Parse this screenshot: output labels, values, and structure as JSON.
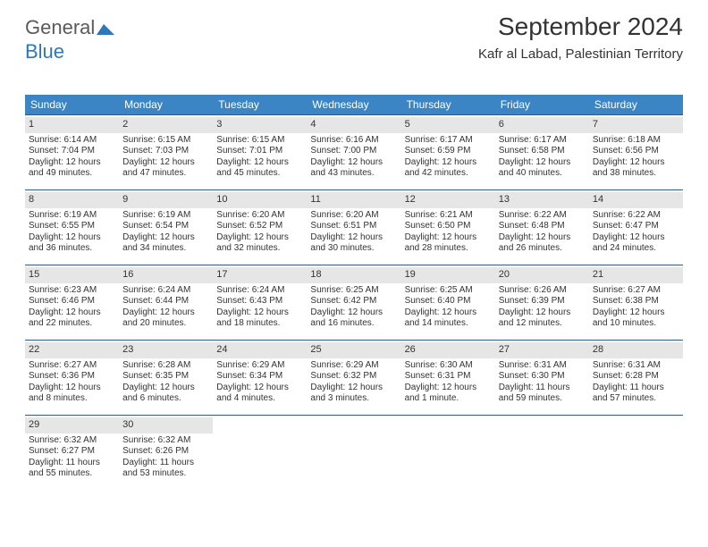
{
  "logo": {
    "text1": "General",
    "text2": "Blue"
  },
  "header": {
    "title": "September 2024",
    "subtitle": "Kafr al Labad, Palestinian Territory"
  },
  "colors": {
    "header_bg": "#3b85c5",
    "header_text": "#ffffff",
    "cell_rule": "#2f5b87",
    "daynum_bg": "#e6e6e6",
    "text": "#333333",
    "logo_gray": "#5a5a5a",
    "logo_blue": "#2f77bb"
  },
  "dayheads": [
    "Sunday",
    "Monday",
    "Tuesday",
    "Wednesday",
    "Thursday",
    "Friday",
    "Saturday"
  ],
  "days": [
    {
      "n": "1",
      "sr": "Sunrise: 6:14 AM",
      "ss": "Sunset: 7:04 PM",
      "d1": "Daylight: 12 hours",
      "d2": "and 49 minutes."
    },
    {
      "n": "2",
      "sr": "Sunrise: 6:15 AM",
      "ss": "Sunset: 7:03 PM",
      "d1": "Daylight: 12 hours",
      "d2": "and 47 minutes."
    },
    {
      "n": "3",
      "sr": "Sunrise: 6:15 AM",
      "ss": "Sunset: 7:01 PM",
      "d1": "Daylight: 12 hours",
      "d2": "and 45 minutes."
    },
    {
      "n": "4",
      "sr": "Sunrise: 6:16 AM",
      "ss": "Sunset: 7:00 PM",
      "d1": "Daylight: 12 hours",
      "d2": "and 43 minutes."
    },
    {
      "n": "5",
      "sr": "Sunrise: 6:17 AM",
      "ss": "Sunset: 6:59 PM",
      "d1": "Daylight: 12 hours",
      "d2": "and 42 minutes."
    },
    {
      "n": "6",
      "sr": "Sunrise: 6:17 AM",
      "ss": "Sunset: 6:58 PM",
      "d1": "Daylight: 12 hours",
      "d2": "and 40 minutes."
    },
    {
      "n": "7",
      "sr": "Sunrise: 6:18 AM",
      "ss": "Sunset: 6:56 PM",
      "d1": "Daylight: 12 hours",
      "d2": "and 38 minutes."
    },
    {
      "n": "8",
      "sr": "Sunrise: 6:19 AM",
      "ss": "Sunset: 6:55 PM",
      "d1": "Daylight: 12 hours",
      "d2": "and 36 minutes."
    },
    {
      "n": "9",
      "sr": "Sunrise: 6:19 AM",
      "ss": "Sunset: 6:54 PM",
      "d1": "Daylight: 12 hours",
      "d2": "and 34 minutes."
    },
    {
      "n": "10",
      "sr": "Sunrise: 6:20 AM",
      "ss": "Sunset: 6:52 PM",
      "d1": "Daylight: 12 hours",
      "d2": "and 32 minutes."
    },
    {
      "n": "11",
      "sr": "Sunrise: 6:20 AM",
      "ss": "Sunset: 6:51 PM",
      "d1": "Daylight: 12 hours",
      "d2": "and 30 minutes."
    },
    {
      "n": "12",
      "sr": "Sunrise: 6:21 AM",
      "ss": "Sunset: 6:50 PM",
      "d1": "Daylight: 12 hours",
      "d2": "and 28 minutes."
    },
    {
      "n": "13",
      "sr": "Sunrise: 6:22 AM",
      "ss": "Sunset: 6:48 PM",
      "d1": "Daylight: 12 hours",
      "d2": "and 26 minutes."
    },
    {
      "n": "14",
      "sr": "Sunrise: 6:22 AM",
      "ss": "Sunset: 6:47 PM",
      "d1": "Daylight: 12 hours",
      "d2": "and 24 minutes."
    },
    {
      "n": "15",
      "sr": "Sunrise: 6:23 AM",
      "ss": "Sunset: 6:46 PM",
      "d1": "Daylight: 12 hours",
      "d2": "and 22 minutes."
    },
    {
      "n": "16",
      "sr": "Sunrise: 6:24 AM",
      "ss": "Sunset: 6:44 PM",
      "d1": "Daylight: 12 hours",
      "d2": "and 20 minutes."
    },
    {
      "n": "17",
      "sr": "Sunrise: 6:24 AM",
      "ss": "Sunset: 6:43 PM",
      "d1": "Daylight: 12 hours",
      "d2": "and 18 minutes."
    },
    {
      "n": "18",
      "sr": "Sunrise: 6:25 AM",
      "ss": "Sunset: 6:42 PM",
      "d1": "Daylight: 12 hours",
      "d2": "and 16 minutes."
    },
    {
      "n": "19",
      "sr": "Sunrise: 6:25 AM",
      "ss": "Sunset: 6:40 PM",
      "d1": "Daylight: 12 hours",
      "d2": "and 14 minutes."
    },
    {
      "n": "20",
      "sr": "Sunrise: 6:26 AM",
      "ss": "Sunset: 6:39 PM",
      "d1": "Daylight: 12 hours",
      "d2": "and 12 minutes."
    },
    {
      "n": "21",
      "sr": "Sunrise: 6:27 AM",
      "ss": "Sunset: 6:38 PM",
      "d1": "Daylight: 12 hours",
      "d2": "and 10 minutes."
    },
    {
      "n": "22",
      "sr": "Sunrise: 6:27 AM",
      "ss": "Sunset: 6:36 PM",
      "d1": "Daylight: 12 hours",
      "d2": "and 8 minutes."
    },
    {
      "n": "23",
      "sr": "Sunrise: 6:28 AM",
      "ss": "Sunset: 6:35 PM",
      "d1": "Daylight: 12 hours",
      "d2": "and 6 minutes."
    },
    {
      "n": "24",
      "sr": "Sunrise: 6:29 AM",
      "ss": "Sunset: 6:34 PM",
      "d1": "Daylight: 12 hours",
      "d2": "and 4 minutes."
    },
    {
      "n": "25",
      "sr": "Sunrise: 6:29 AM",
      "ss": "Sunset: 6:32 PM",
      "d1": "Daylight: 12 hours",
      "d2": "and 3 minutes."
    },
    {
      "n": "26",
      "sr": "Sunrise: 6:30 AM",
      "ss": "Sunset: 6:31 PM",
      "d1": "Daylight: 12 hours",
      "d2": "and 1 minute."
    },
    {
      "n": "27",
      "sr": "Sunrise: 6:31 AM",
      "ss": "Sunset: 6:30 PM",
      "d1": "Daylight: 11 hours",
      "d2": "and 59 minutes."
    },
    {
      "n": "28",
      "sr": "Sunrise: 6:31 AM",
      "ss": "Sunset: 6:28 PM",
      "d1": "Daylight: 11 hours",
      "d2": "and 57 minutes."
    },
    {
      "n": "29",
      "sr": "Sunrise: 6:32 AM",
      "ss": "Sunset: 6:27 PM",
      "d1": "Daylight: 11 hours",
      "d2": "and 55 minutes."
    },
    {
      "n": "30",
      "sr": "Sunrise: 6:32 AM",
      "ss": "Sunset: 6:26 PM",
      "d1": "Daylight: 11 hours",
      "d2": "and 53 minutes."
    }
  ]
}
